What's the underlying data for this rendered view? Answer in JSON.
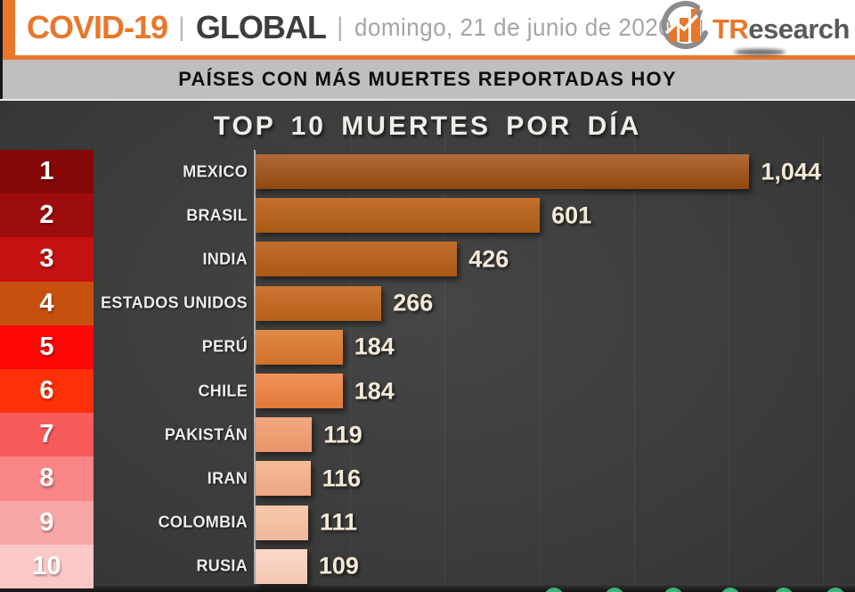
{
  "header": {
    "brand": "COVID-19",
    "separator1": "|",
    "scope": "GLOBAL",
    "separator2": "|",
    "date": "domingo, 21 de junio de 2020",
    "separator3": "|",
    "accent_color": "#e8772a",
    "logo": {
      "tr": "TR",
      "rest": "esearch",
      "icon": "bar-chart-swoosh-icon"
    }
  },
  "subheader": {
    "text": "PAÍSES CON MÁS MUERTES REPORTADAS HOY",
    "background": "#bfbfbf"
  },
  "chart_data": {
    "type": "bar",
    "orientation": "horizontal",
    "title": "TOP 10 MUERTES POR DÍA",
    "categories": [
      "MEXICO",
      "BRASIL",
      "INDIA",
      "ESTADOS UNIDOS",
      "PERÚ",
      "CHILE",
      "PAKISTÁN",
      "IRAN",
      "COLOMBIA",
      "RUSIA"
    ],
    "values": [
      1044,
      601,
      426,
      266,
      184,
      184,
      119,
      116,
      111,
      109
    ],
    "value_labels": [
      "1,044",
      "601",
      "426",
      "266",
      "184",
      "184",
      "119",
      "116",
      "111",
      "109"
    ],
    "ranks": [
      "1",
      "2",
      "3",
      "4",
      "5",
      "6",
      "7",
      "8",
      "9",
      "10"
    ],
    "rank_colors": [
      "#850808",
      "#9e0d0d",
      "#c51111",
      "#c8500f",
      "#fc0606",
      "#fe3008",
      "#f75b5b",
      "#f98585",
      "#f9a6a6",
      "#fbc8c8"
    ],
    "bar_colors": [
      [
        "#b0693a",
        "#91490e"
      ],
      [
        "#c3702f",
        "#a95a14"
      ],
      [
        "#c26d2c",
        "#aa5a15"
      ],
      [
        "#cd7634",
        "#b5601a"
      ],
      [
        "#e08a46",
        "#d1702a"
      ],
      [
        "#f0935a",
        "#e27a38"
      ],
      [
        "#f2a97e",
        "#e9946a"
      ],
      [
        "#f5bb97",
        "#eda684"
      ],
      [
        "#f7c9ac",
        "#f0b79c"
      ],
      [
        "#fad9c8",
        "#f3c7b4"
      ]
    ],
    "xlim": [
      0,
      1200
    ],
    "gridline_step": 200,
    "grid": true,
    "background": "#3d3d3d",
    "title_color": "#f1eee9",
    "value_label_color": "#f3e9d6"
  },
  "footer": {
    "dot_color": "#3cb377",
    "dot_count": 6,
    "dot_centers_x": [
      622,
      690,
      756,
      820,
      880,
      938
    ]
  }
}
